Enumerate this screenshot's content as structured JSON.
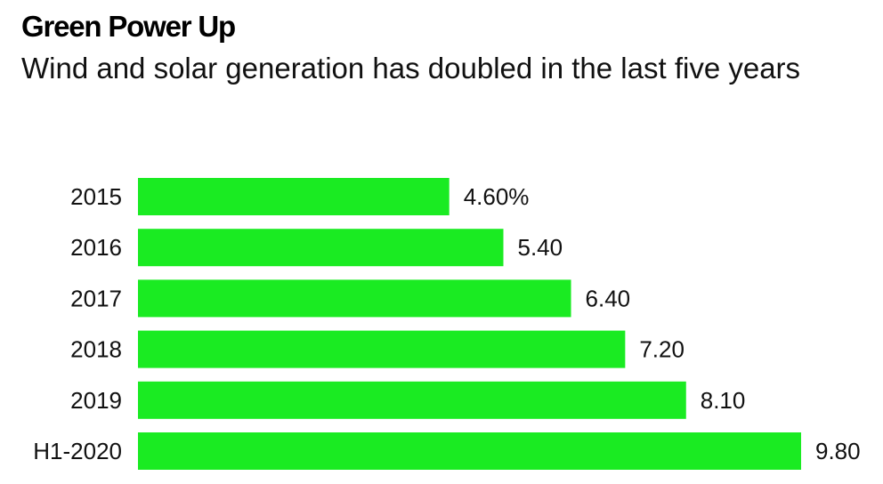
{
  "title": "Green Power Up",
  "subtitle": "Wind and solar generation has doubled in the last five years",
  "colors": {
    "bar": "#1aeb22",
    "text": "#111111"
  },
  "chart_data": {
    "type": "bar",
    "orientation": "horizontal",
    "title": "Green Power Up",
    "subtitle": "Wind and solar generation has doubled in the last five years",
    "categories": [
      "2015",
      "2016",
      "2017",
      "2018",
      "2019",
      "H1-2020"
    ],
    "values": [
      4.6,
      5.4,
      6.4,
      7.2,
      8.1,
      9.8
    ],
    "value_labels": [
      "4.60%",
      "5.40",
      "6.40",
      "7.20",
      "8.10",
      "9.80"
    ],
    "xlabel": "",
    "ylabel": "",
    "xlim": [
      0,
      9.8
    ],
    "grid": false,
    "legend": "none"
  }
}
